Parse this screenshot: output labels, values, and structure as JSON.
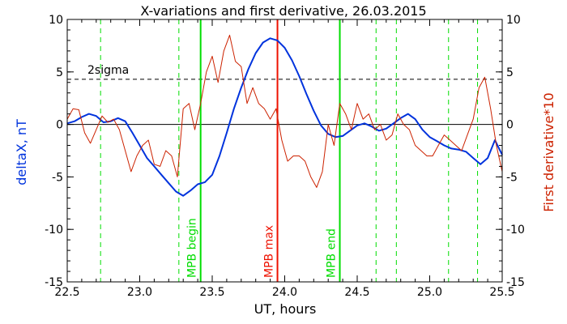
{
  "chart_data": {
    "type": "line",
    "title": "X-variations and first derivative, 26.03.2015",
    "xlabel": "UT, hours",
    "ylabel_left": "deltaX, nT",
    "ylabel_right": "First derivative*10",
    "xlim": [
      22.5,
      25.5
    ],
    "ylim": [
      -15,
      10
    ],
    "x_ticks": [
      "22.5",
      "23.0",
      "23.5",
      "24.0",
      "24.5",
      "25.0",
      "25.5"
    ],
    "x_tick_values": [
      22.5,
      23.0,
      23.5,
      24.0,
      24.5,
      25.0,
      25.5
    ],
    "y_ticks": [
      "10",
      "5",
      "0",
      "-5",
      "-10",
      "-15"
    ],
    "y_tick_values": [
      10,
      5,
      0,
      -5,
      -10,
      -15
    ],
    "y_ticks_right": [
      "10",
      "5",
      "0",
      "-5",
      "-10",
      "-15"
    ],
    "sigma_level": 4.3,
    "sigma_label": "2sigma",
    "zero_line": 0,
    "colors": {
      "deltaX": "#0033dd",
      "derivative": "#cc2200",
      "mpb": "#00dd00",
      "max": "#ee1100",
      "axis": "#000000"
    },
    "series": [
      {
        "name": "deltaX, nT",
        "color": "#0033dd",
        "x": [
          22.5,
          22.55,
          22.6,
          22.65,
          22.7,
          22.75,
          22.8,
          22.85,
          22.9,
          22.95,
          23.0,
          23.05,
          23.1,
          23.15,
          23.2,
          23.25,
          23.3,
          23.35,
          23.4,
          23.45,
          23.5,
          23.55,
          23.6,
          23.65,
          23.7,
          23.75,
          23.8,
          23.85,
          23.9,
          23.95,
          24.0,
          24.05,
          24.1,
          24.15,
          24.2,
          24.25,
          24.3,
          24.35,
          24.4,
          24.45,
          24.5,
          24.55,
          24.6,
          24.65,
          24.7,
          24.75,
          24.8,
          24.85,
          24.9,
          24.95,
          25.0,
          25.05,
          25.1,
          25.15,
          25.2,
          25.25,
          25.3,
          25.35,
          25.4,
          25.45,
          25.5
        ],
        "values": [
          0.1,
          0.3,
          0.7,
          1.0,
          0.8,
          0.2,
          0.3,
          0.6,
          0.3,
          -0.8,
          -2.0,
          -3.2,
          -4.0,
          -4.8,
          -5.6,
          -6.4,
          -6.8,
          -6.3,
          -5.7,
          -5.5,
          -4.8,
          -3.0,
          -0.8,
          1.5,
          3.5,
          5.3,
          6.8,
          7.8,
          8.2,
          8.0,
          7.3,
          6.1,
          4.6,
          2.9,
          1.3,
          -0.1,
          -0.9,
          -1.2,
          -1.1,
          -0.6,
          -0.1,
          0.1,
          -0.2,
          -0.6,
          -0.4,
          0.1,
          0.6,
          1.0,
          0.5,
          -0.5,
          -1.2,
          -1.6,
          -2.0,
          -2.3,
          -2.4,
          -2.6,
          -3.2,
          -3.8,
          -3.2,
          -1.5,
          -2.9
        ]
      },
      {
        "name": "First derivative*10",
        "color": "#cc2200",
        "x": [
          22.5,
          22.54,
          22.58,
          22.62,
          22.66,
          22.7,
          22.74,
          22.78,
          22.82,
          22.86,
          22.9,
          22.94,
          22.98,
          23.02,
          23.06,
          23.1,
          23.14,
          23.18,
          23.22,
          23.26,
          23.3,
          23.34,
          23.38,
          23.42,
          23.46,
          23.5,
          23.54,
          23.58,
          23.62,
          23.66,
          23.7,
          23.74,
          23.78,
          23.82,
          23.86,
          23.9,
          23.94,
          23.98,
          24.02,
          24.06,
          24.1,
          24.14,
          24.18,
          24.22,
          24.26,
          24.3,
          24.34,
          24.38,
          24.42,
          24.46,
          24.5,
          24.54,
          24.58,
          24.62,
          24.66,
          24.7,
          24.74,
          24.78,
          24.82,
          24.86,
          24.9,
          24.94,
          24.98,
          25.02,
          25.06,
          25.1,
          25.14,
          25.18,
          25.22,
          25.26,
          25.3,
          25.34,
          25.38,
          25.42,
          25.46,
          25.5
        ],
        "values": [
          0.5,
          1.5,
          1.4,
          -0.8,
          -1.8,
          -0.5,
          0.8,
          0.2,
          0.5,
          -0.5,
          -2.5,
          -4.5,
          -3.0,
          -2.0,
          -1.5,
          -3.8,
          -4.0,
          -2.5,
          -3.0,
          -5.0,
          1.5,
          2.0,
          -0.5,
          2.0,
          5.0,
          6.5,
          4.0,
          7.0,
          8.5,
          6.0,
          5.5,
          2.0,
          3.5,
          2.0,
          1.5,
          0.5,
          1.5,
          -1.5,
          -3.5,
          -3.0,
          -3.0,
          -3.5,
          -5.0,
          -6.0,
          -4.5,
          0.0,
          -2.0,
          2.0,
          1.0,
          -0.5,
          2.0,
          0.5,
          1.0,
          -0.5,
          0.0,
          -1.5,
          -1.0,
          1.0,
          0.0,
          -0.5,
          -2.0,
          -2.5,
          -3.0,
          -3.0,
          -2.0,
          -1.0,
          -1.5,
          -2.0,
          -2.5,
          -1.0,
          0.5,
          3.5,
          4.5,
          1.5,
          -2.0,
          -4.5
        ]
      }
    ],
    "vertical_lines": [
      {
        "x": 22.73,
        "style": "dashed",
        "color": "#00dd00"
      },
      {
        "x": 23.27,
        "style": "dashed",
        "color": "#00dd00"
      },
      {
        "x": 23.42,
        "style": "solid",
        "color": "#00dd00",
        "label": "MPB begin"
      },
      {
        "x": 23.95,
        "style": "solid",
        "color": "#ee1100",
        "label": "MPB max"
      },
      {
        "x": 24.38,
        "style": "solid",
        "color": "#00dd00",
        "label": "MPB end"
      },
      {
        "x": 24.63,
        "style": "dashed",
        "color": "#00dd00"
      },
      {
        "x": 24.77,
        "style": "dashed",
        "color": "#00dd00"
      },
      {
        "x": 25.13,
        "style": "dashed",
        "color": "#00dd00"
      },
      {
        "x": 25.33,
        "style": "dashed",
        "color": "#00dd00"
      }
    ]
  }
}
